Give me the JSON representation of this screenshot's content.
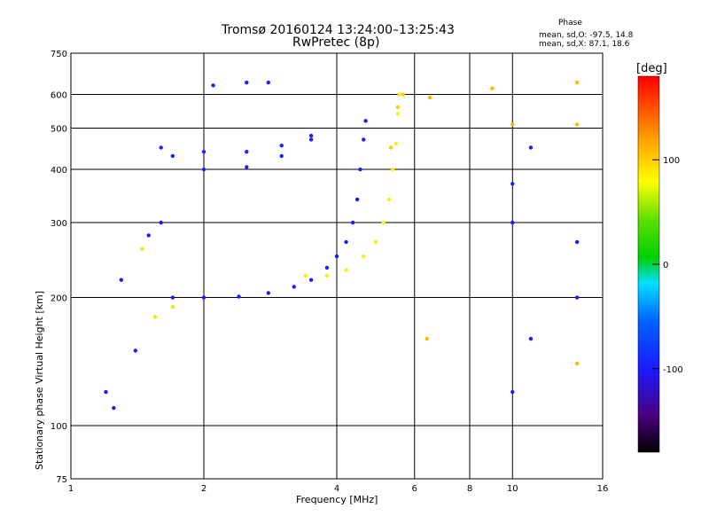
{
  "chart_data": {
    "type": "scatter",
    "title": "Tromsø 20160124 13:24:00–13:25:43",
    "subtitle": "RwPretec (8p)",
    "phase_info": {
      "heading": "Phase",
      "line_o": "mean, sd,O: -97.5, 14.8",
      "line_x": "mean, sd,X: 87.1, 18.6"
    },
    "xlabel": "Frequency [MHz]",
    "ylabel": "Stationary phase Virtual Height [km]",
    "x_scale": "log",
    "y_scale": "log",
    "xlim": [
      1,
      16
    ],
    "ylim": [
      75,
      750
    ],
    "x_ticks": [
      1,
      2,
      4,
      6,
      8,
      10,
      16
    ],
    "x_tick_labels": [
      "1",
      "2",
      "4",
      "6",
      "8",
      "10",
      "16"
    ],
    "y_ticks": [
      75,
      100,
      200,
      300,
      400,
      500,
      600,
      750
    ],
    "y_tick_labels": [
      "75",
      "100",
      "200",
      "300",
      "400",
      "500",
      "600",
      "750"
    ],
    "grid": true,
    "colorbar": {
      "label": "deg",
      "range": [
        -180,
        180
      ],
      "ticks": [
        100,
        0,
        -100
      ],
      "tick_labels": [
        "100",
        "0",
        "-100"
      ]
    },
    "traces": [
      {
        "kind": "o_mode_trace",
        "phase": -100,
        "points": [
          [
            2.0,
            200
          ],
          [
            2.4,
            201
          ],
          [
            2.8,
            205
          ],
          [
            3.2,
            212
          ],
          [
            3.5,
            220
          ],
          [
            3.8,
            235
          ],
          [
            4.0,
            250
          ],
          [
            4.2,
            270
          ],
          [
            4.35,
            300
          ],
          [
            4.45,
            340
          ],
          [
            4.52,
            400
          ],
          [
            4.6,
            470
          ],
          [
            4.65,
            520
          ]
        ]
      },
      {
        "kind": "x_mode_trace",
        "phase": 85,
        "points": [
          [
            3.4,
            225
          ],
          [
            3.8,
            225
          ],
          [
            4.2,
            232
          ],
          [
            4.6,
            250
          ],
          [
            4.9,
            270
          ],
          [
            5.1,
            300
          ],
          [
            5.25,
            340
          ],
          [
            5.35,
            400
          ],
          [
            5.45,
            460
          ],
          [
            5.5,
            540
          ],
          [
            5.55,
            600
          ]
        ]
      },
      {
        "kind": "o_mode_upper",
        "phase": -95,
        "points": [
          [
            2.0,
            440
          ],
          [
            2.5,
            440
          ],
          [
            3.0,
            455
          ],
          [
            3.5,
            480
          ]
        ]
      },
      {
        "kind": "o_mode_upper",
        "phase": -95,
        "points": [
          [
            2.0,
            400
          ],
          [
            2.5,
            405
          ],
          [
            3.0,
            430
          ],
          [
            3.5,
            470
          ]
        ]
      },
      {
        "kind": "x_mode_upper",
        "phase": 100,
        "points": [
          [
            5.3,
            450
          ],
          [
            5.5,
            560
          ],
          [
            5.65,
            600
          ]
        ]
      },
      {
        "kind": "o_mode_cluster",
        "phase": -100,
        "points": [
          [
            1.3,
            220
          ],
          [
            1.5,
            280
          ],
          [
            1.7,
            200
          ],
          [
            1.4,
            150
          ],
          [
            1.2,
            120
          ],
          [
            1.6,
            300
          ],
          [
            1.25,
            110
          ]
        ]
      },
      {
        "kind": "x_mode_cluster",
        "phase": 70,
        "points": [
          [
            1.55,
            180
          ],
          [
            1.7,
            190
          ],
          [
            1.45,
            260
          ]
        ]
      },
      {
        "kind": "o_mode_patch",
        "phase": -95,
        "points": [
          [
            2.1,
            630
          ],
          [
            2.5,
            640
          ],
          [
            2.8,
            640
          ],
          [
            1.6,
            450
          ],
          [
            1.7,
            430
          ]
        ]
      },
      {
        "kind": "misc",
        "phase": 110,
        "points": [
          [
            6.5,
            590
          ],
          [
            9.0,
            620
          ],
          [
            14.0,
            640
          ],
          [
            14.0,
            510
          ],
          [
            10.0,
            510
          ],
          [
            6.4,
            160
          ],
          [
            14.0,
            140
          ]
        ]
      },
      {
        "kind": "misc",
        "phase": -100,
        "points": [
          [
            10.0,
            370
          ],
          [
            10.0,
            300
          ],
          [
            11.0,
            450
          ],
          [
            11.0,
            160
          ],
          [
            14.0,
            270
          ],
          [
            14.0,
            200
          ],
          [
            10.0,
            120
          ]
        ]
      }
    ]
  }
}
